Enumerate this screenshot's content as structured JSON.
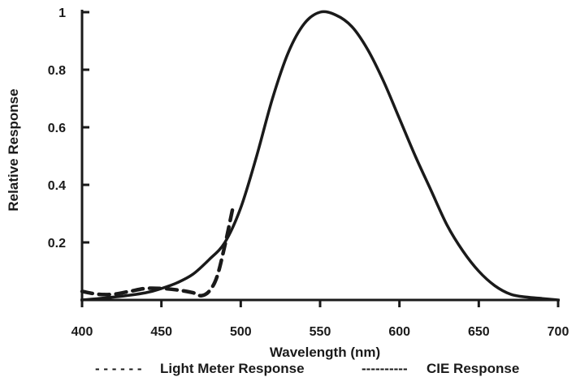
{
  "chart_data": {
    "type": "line",
    "xlabel": "Wavelength (nm)",
    "ylabel": "Relative Response",
    "xlim": [
      400,
      700
    ],
    "ylim": [
      0,
      1
    ],
    "x_ticks": [
      "400",
      "450",
      "500",
      "550",
      "600",
      "650",
      "700"
    ],
    "y_ticks": [
      "0.2",
      "0.4",
      "0.6",
      "0.8",
      "1"
    ],
    "x_tick_values": [
      400,
      450,
      500,
      550,
      600,
      650,
      700
    ],
    "y_tick_values": [
      0.2,
      0.4,
      0.6,
      0.8,
      1.0
    ],
    "grid": false,
    "legend_position": "bottom",
    "legend": [
      {
        "marker": "- - - - - -",
        "label": "Light Meter Response"
      },
      {
        "marker": "----------",
        "label": "CIE Response"
      }
    ],
    "series": [
      {
        "name": "Light Meter Response",
        "style": "dashed",
        "x": [
          400,
          410,
          420,
          430,
          440,
          450,
          460,
          470,
          475,
          480,
          485,
          490,
          495
        ],
        "y": [
          0.03,
          0.02,
          0.02,
          0.03,
          0.04,
          0.04,
          0.035,
          0.025,
          0.015,
          0.03,
          0.08,
          0.19,
          0.32
        ]
      },
      {
        "name": "CIE Response",
        "style": "solid",
        "x": [
          400,
          420,
          440,
          450,
          460,
          470,
          480,
          490,
          500,
          510,
          520,
          530,
          540,
          550,
          560,
          570,
          580,
          590,
          600,
          610,
          620,
          630,
          640,
          650,
          660,
          670,
          680,
          690,
          700
        ],
        "y": [
          0.0,
          0.01,
          0.025,
          0.04,
          0.06,
          0.09,
          0.14,
          0.2,
          0.32,
          0.5,
          0.7,
          0.86,
          0.96,
          1.0,
          0.99,
          0.95,
          0.87,
          0.76,
          0.63,
          0.5,
          0.38,
          0.26,
          0.17,
          0.1,
          0.05,
          0.02,
          0.01,
          0.005,
          0.0
        ]
      }
    ]
  }
}
